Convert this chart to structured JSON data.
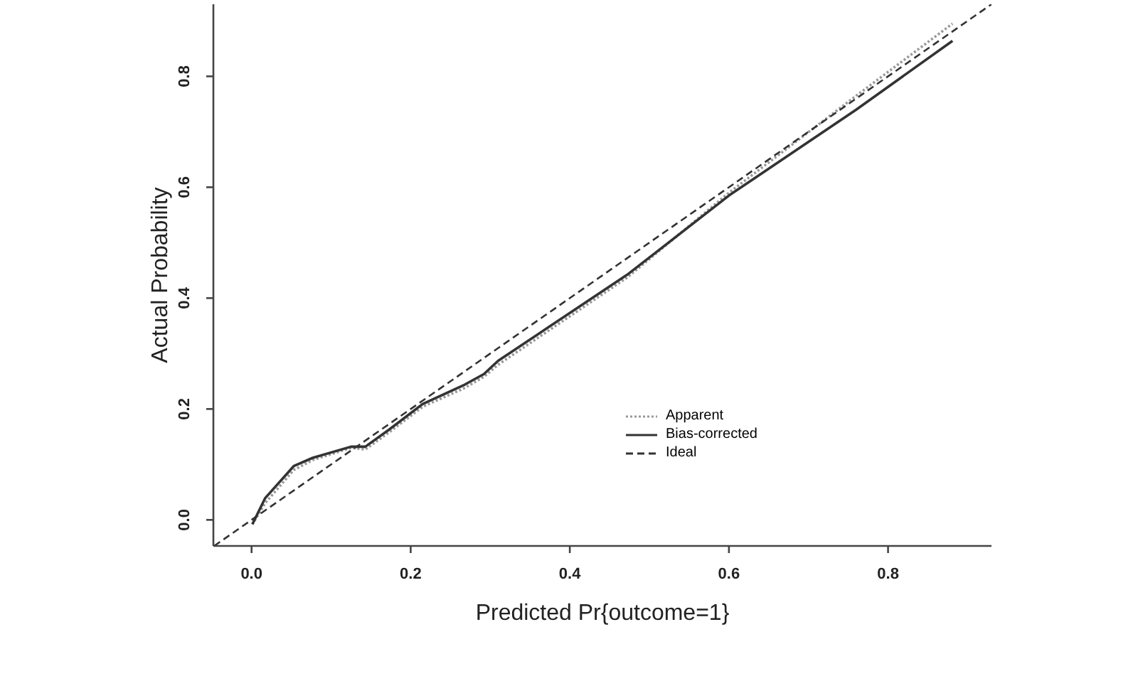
{
  "chart_data": {
    "type": "line",
    "xlabel": "Predicted Pr{outcome=1}",
    "ylabel": "Actual Probability",
    "xlim": [
      -0.048,
      0.93
    ],
    "ylim": [
      -0.047,
      0.93
    ],
    "xticks": [
      {
        "value": 0,
        "label": "0.0"
      },
      {
        "value": 0.2,
        "label": "0.2"
      },
      {
        "value": 0.4,
        "label": "0.4"
      },
      {
        "value": 0.6,
        "label": "0.6"
      },
      {
        "value": 0.8,
        "label": "0.8"
      }
    ],
    "yticks": [
      {
        "value": 0,
        "label": "0.0"
      },
      {
        "value": 0.2,
        "label": "0.2"
      },
      {
        "value": 0.4,
        "label": "0.4"
      },
      {
        "value": 0.6,
        "label": "0.6"
      },
      {
        "value": 0.8,
        "label": "0.8"
      }
    ],
    "legend": "bottom right",
    "marker": "none",
    "series": [
      {
        "name": "Apparent",
        "color": "#999999",
        "line_style": "dotted",
        "x": [
          0.001,
          0.017,
          0.053,
          0.077,
          0.125,
          0.143,
          0.173,
          0.215,
          0.268,
          0.292,
          0.31,
          0.472,
          0.6,
          0.76,
          0.881
        ],
        "values": [
          -0.008,
          0.03,
          0.09,
          0.108,
          0.13,
          0.127,
          0.158,
          0.204,
          0.238,
          0.258,
          0.28,
          0.437,
          0.59,
          0.765,
          0.895
        ]
      },
      {
        "name": "Bias-corrected",
        "color": "#333333",
        "line_style": "solid",
        "x": [
          0.001,
          0.017,
          0.053,
          0.077,
          0.125,
          0.143,
          0.173,
          0.215,
          0.268,
          0.292,
          0.31,
          0.472,
          0.6,
          0.76,
          0.881
        ],
        "values": [
          -0.008,
          0.039,
          0.097,
          0.112,
          0.132,
          0.132,
          0.163,
          0.209,
          0.244,
          0.263,
          0.287,
          0.442,
          0.585,
          0.74,
          0.864
        ]
      },
      {
        "name": "Ideal",
        "color": "#333333",
        "line_style": "dashed",
        "x": [
          -0.047,
          0.93
        ],
        "values": [
          -0.047,
          0.93
        ]
      }
    ]
  }
}
